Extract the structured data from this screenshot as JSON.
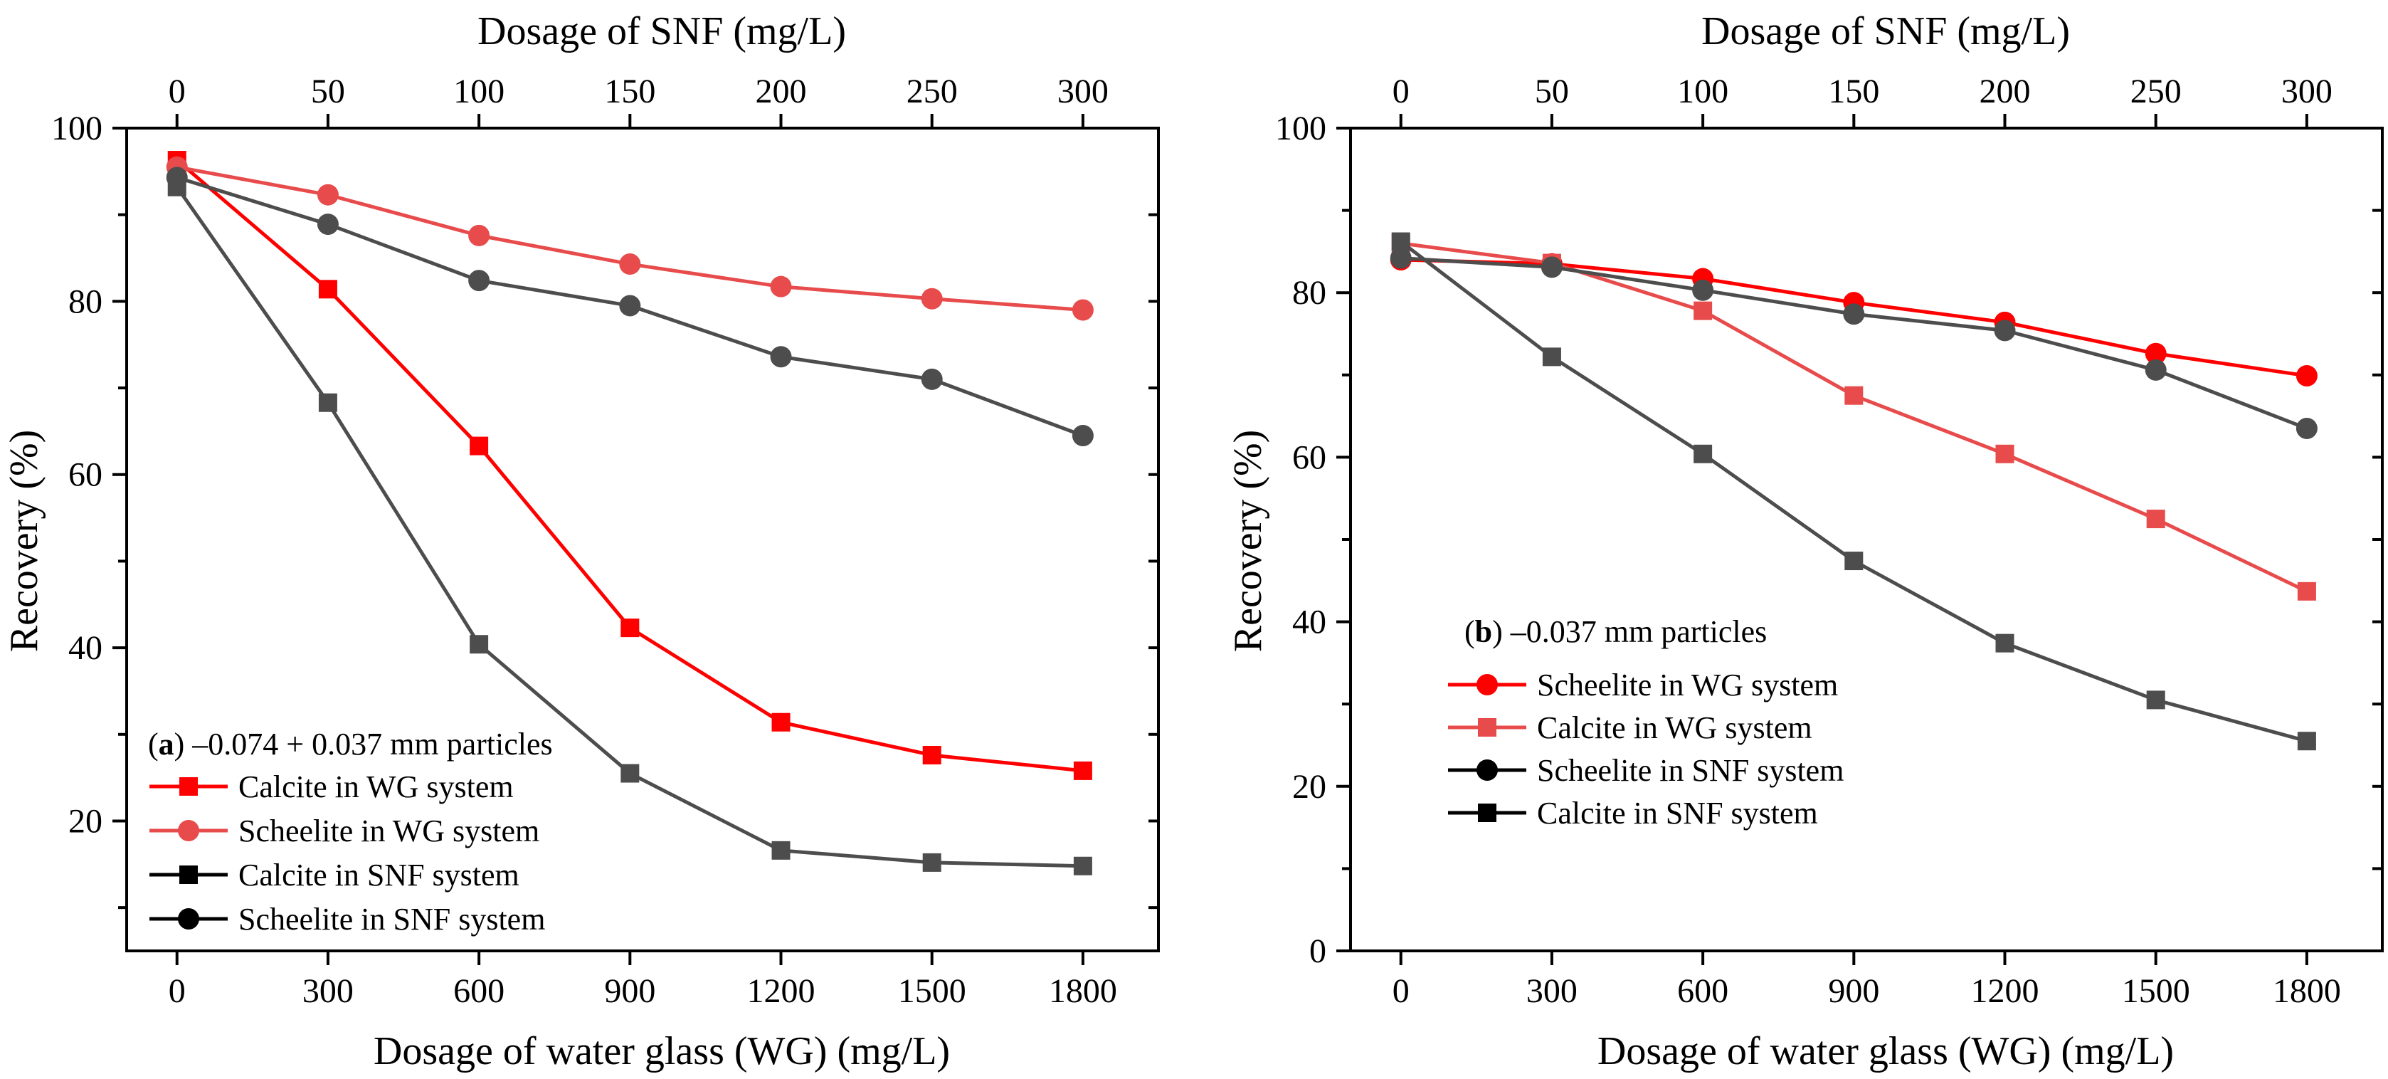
{
  "chart_data": [
    {
      "type": "line",
      "panel": "a",
      "annotation_letter": "a",
      "annotation_text": ") –0.074 + 0.037 mm particles",
      "annotation_open": "(",
      "xlabel": "Dosage of water glass (WG) (mg/L)",
      "x2label": "Dosage of SNF (mg/L)",
      "ylabel": "Recovery (%)",
      "x": [
        0,
        300,
        600,
        900,
        1200,
        1500,
        1800
      ],
      "x_tick_labels": [
        "0",
        "300",
        "600",
        "900",
        "1200",
        "1500",
        "1800"
      ],
      "x2_tick_labels": [
        "0",
        "50",
        "100",
        "150",
        "200",
        "250",
        "300"
      ],
      "xlim": [
        -100,
        1950
      ],
      "ylim": [
        5,
        100
      ],
      "y_ticks": [
        20,
        40,
        60,
        80,
        100
      ],
      "y_tick_labels": [
        "20",
        "40",
        "60",
        "80",
        "100"
      ],
      "series": [
        {
          "name": "Calcite in WG system",
          "color": "#ff0000",
          "marker": "square",
          "values": [
            96.3,
            81.4,
            63.3,
            42.3,
            31.4,
            27.6,
            25.8
          ]
        },
        {
          "name": "Scheelite in WG system",
          "color": "#e84b4b",
          "marker": "circle",
          "values": [
            95.5,
            92.3,
            87.6,
            84.3,
            81.7,
            80.3,
            79.0
          ]
        },
        {
          "name": "Calcite in SNF system",
          "color": "#4d4d4d",
          "marker": "square",
          "values": [
            93.2,
            68.3,
            40.4,
            25.5,
            16.6,
            15.2,
            14.8
          ]
        },
        {
          "name": "Scheelite in SNF system",
          "color": "#4d4d4d",
          "marker": "circle",
          "values": [
            94.3,
            88.9,
            82.4,
            79.5,
            73.6,
            71.0,
            64.5
          ]
        }
      ],
      "legend": [
        {
          "label": "Calcite in WG system",
          "color": "#ff0000",
          "marker": "square"
        },
        {
          "label": "Scheelite in WG system",
          "color": "#e84b4b",
          "marker": "circle"
        },
        {
          "label": "Calcite in SNF system",
          "color": "#000000",
          "marker": "square"
        },
        {
          "label": "Scheelite in SNF system",
          "color": "#000000",
          "marker": "circle"
        }
      ],
      "legend_position": "bottom-left"
    },
    {
      "type": "line",
      "panel": "b",
      "annotation_letter": "b",
      "annotation_text": ") –0.037 mm particles",
      "annotation_open": "(",
      "xlabel": "Dosage of water glass (WG) (mg/L)",
      "x2label": "Dosage of SNF (mg/L)",
      "ylabel": "Recovery (%)",
      "x": [
        0,
        300,
        600,
        900,
        1200,
        1500,
        1800
      ],
      "x_tick_labels": [
        "0",
        "300",
        "600",
        "900",
        "1200",
        "1500",
        "1800"
      ],
      "x2_tick_labels": [
        "0",
        "50",
        "100",
        "150",
        "200",
        "250",
        "300"
      ],
      "xlim": [
        -100,
        1950
      ],
      "ylim": [
        0,
        100
      ],
      "y_ticks": [
        0,
        20,
        40,
        60,
        80,
        100
      ],
      "y_tick_labels": [
        "0",
        "20",
        "40",
        "60",
        "80",
        "100"
      ],
      "series": [
        {
          "name": "Scheelite in WG system",
          "color": "#ff0000",
          "marker": "circle",
          "values": [
            84.0,
            83.5,
            81.7,
            78.8,
            76.4,
            72.6,
            69.9
          ]
        },
        {
          "name": "Calcite in WG system",
          "color": "#e84b4b",
          "marker": "square",
          "values": [
            86.0,
            83.6,
            77.8,
            67.5,
            60.4,
            52.5,
            43.7
          ]
        },
        {
          "name": "Scheelite in SNF system",
          "color": "#4d4d4d",
          "marker": "circle",
          "values": [
            84.2,
            83.1,
            80.3,
            77.4,
            75.4,
            70.6,
            63.5
          ]
        },
        {
          "name": "Calcite in SNF system",
          "color": "#4d4d4d",
          "marker": "square",
          "values": [
            86.2,
            72.2,
            60.4,
            47.4,
            37.4,
            30.5,
            25.5
          ]
        }
      ],
      "legend": [
        {
          "label": "Scheelite in WG system",
          "color": "#ff0000",
          "marker": "circle"
        },
        {
          "label": "Calcite in WG system",
          "color": "#e84b4b",
          "marker": "square"
        },
        {
          "label": "Scheelite in SNF system",
          "color": "#000000",
          "marker": "circle"
        },
        {
          "label": "Calcite in SNF system",
          "color": "#000000",
          "marker": "square"
        }
      ],
      "legend_position": "middle-left"
    }
  ]
}
